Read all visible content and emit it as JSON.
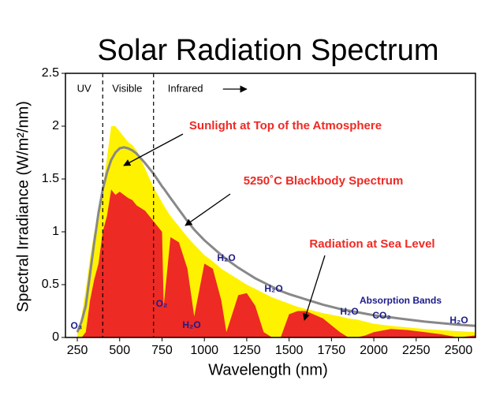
{
  "chart_data": {
    "type": "area",
    "title": "Solar Radiation Spectrum",
    "x_label": "Wavelength (nm)",
    "y_label": "Spectral Irradiance (W/m²/nm)",
    "xlim": [
      180,
      2600
    ],
    "ylim": [
      0,
      2.5
    ],
    "xticks": [
      250,
      500,
      750,
      1000,
      1250,
      1500,
      1750,
      2000,
      2250,
      2500
    ],
    "yticks": [
      0,
      0.5,
      1,
      1.5,
      2,
      2.5
    ],
    "x": [
      250,
      275,
      300,
      325,
      350,
      375,
      400,
      425,
      450,
      475,
      500,
      525,
      550,
      575,
      600,
      650,
      700,
      750,
      760,
      800,
      850,
      900,
      940,
      1000,
      1050,
      1100,
      1130,
      1200,
      1250,
      1300,
      1350,
      1400,
      1450,
      1500,
      1550,
      1600,
      1700,
      1800,
      1850,
      1900,
      1950,
      2000,
      2100,
      2200,
      2300,
      2400,
      2500,
      2600
    ],
    "series": [
      {
        "name": "Sunlight at Top of the Atmosphere",
        "style": "area",
        "color": "#fff200",
        "values": [
          0.05,
          0.2,
          0.45,
          0.75,
          1.0,
          1.1,
          1.4,
          1.7,
          2.0,
          2.0,
          1.95,
          1.9,
          1.85,
          1.82,
          1.77,
          1.6,
          1.42,
          1.28,
          1.25,
          1.15,
          1.05,
          0.95,
          0.88,
          0.78,
          0.72,
          0.65,
          0.62,
          0.55,
          0.5,
          0.46,
          0.42,
          0.38,
          0.35,
          0.32,
          0.29,
          0.27,
          0.23,
          0.2,
          0.18,
          0.17,
          0.15,
          0.13,
          0.11,
          0.095,
          0.08,
          0.07,
          0.06,
          0.05
        ]
      },
      {
        "name": "Radiation at Sea Level",
        "style": "area",
        "color": "#ee2a24",
        "values": [
          0,
          0,
          0.05,
          0.35,
          0.55,
          0.7,
          1.0,
          1.15,
          1.4,
          1.35,
          1.38,
          1.35,
          1.32,
          1.3,
          1.25,
          1.2,
          1.1,
          1.0,
          0.3,
          0.95,
          0.9,
          0.65,
          0.2,
          0.7,
          0.65,
          0.35,
          0.05,
          0.4,
          0.42,
          0.3,
          0.05,
          0,
          0,
          0.22,
          0.25,
          0.25,
          0.18,
          0.05,
          0,
          0,
          0.02,
          0.05,
          0.08,
          0.07,
          0.05,
          0.03,
          0,
          0.02
        ]
      },
      {
        "name": "5250˚C Blackbody Spectrum",
        "style": "line",
        "color": "#888888",
        "values": [
          0.05,
          0.15,
          0.3,
          0.6,
          0.9,
          1.18,
          1.4,
          1.56,
          1.68,
          1.75,
          1.79,
          1.8,
          1.79,
          1.77,
          1.74,
          1.65,
          1.55,
          1.43,
          1.41,
          1.32,
          1.21,
          1.1,
          1.02,
          0.92,
          0.85,
          0.78,
          0.74,
          0.66,
          0.61,
          0.56,
          0.52,
          0.48,
          0.44,
          0.41,
          0.385,
          0.36,
          0.31,
          0.27,
          0.255,
          0.24,
          0.225,
          0.21,
          0.19,
          0.17,
          0.15,
          0.135,
          0.12,
          0.11
        ]
      }
    ],
    "region_bounds": [
      400,
      700
    ],
    "region_labels": [
      "UV",
      "Visible",
      "Infrared"
    ],
    "annotations": [
      "Absorption Bands",
      "O₃",
      "O₂",
      "H₂O",
      "H₂O",
      "H₂O",
      "H₂O",
      "CO₂",
      "H₂O"
    ]
  }
}
